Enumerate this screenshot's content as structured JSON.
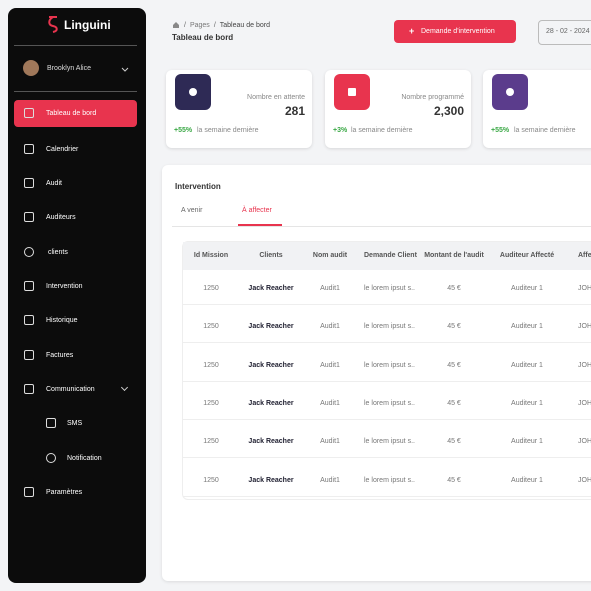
{
  "sidebar": {
    "brand": "Linguini",
    "user": "Brooklyn Alice",
    "menu": [
      "Tableau de bord",
      "Calendrier",
      "Audit",
      "Auditeurs",
      "clients",
      "Intervention",
      "Historique",
      "Factures",
      "Communication",
      "SMS",
      "Notification",
      "Paramètres"
    ]
  },
  "header": {
    "breadcrumb": [
      "Pages",
      "Tableau de bord"
    ],
    "separator": "/",
    "title": "Tableau de bord",
    "button": "Demande d'intervention",
    "date": "28 - 02 - 2024"
  },
  "cards": [
    {
      "label": "Nombre en attente",
      "value": "281",
      "change": "+55%",
      "change_text": "la semaine dernière"
    },
    {
      "label": "Nombre programmé",
      "value": "2,300",
      "change": "+3%",
      "change_text": "la semaine dernière"
    },
    {
      "change": "+55%",
      "change_text": "la semaine dernière"
    }
  ],
  "panel": {
    "title": "Intervention",
    "tabs": [
      "A venir",
      "À  affecter"
    ],
    "table": {
      "columns": [
        "Id  Mission",
        "Clients",
        "Nom audit",
        "Demande Client",
        "Montant de l'audit",
        "Auditeur Affecté",
        "Affe"
      ],
      "rows": [
        [
          1250,
          "Jack Reacher",
          "Audit1",
          "le lorem ipsut s..",
          "45  €",
          "Auditeur 1",
          "JOH"
        ],
        [
          1250,
          "Jack Reacher",
          "Audit1",
          "le lorem ipsut s..",
          "45  €",
          "Auditeur 1",
          "JOH"
        ],
        [
          1250,
          "Jack Reacher",
          "Audit1",
          "le lorem ipsut s..",
          "45  €",
          "Auditeur 1",
          "JOH"
        ],
        [
          1250,
          "Jack Reacher",
          "Audit1",
          "le lorem ipsut s..",
          "45  €",
          "Auditeur 1",
          "JOH"
        ],
        [
          1250,
          "Jack Reacher",
          "Audit1",
          "le lorem ipsut s..",
          "45  €",
          "Auditeur 1",
          "JOH"
        ],
        [
          1250,
          "Jack Reacher",
          "Audit1",
          "le lorem ipsut s..",
          "45  €",
          "Auditeur 1",
          "JOH"
        ]
      ]
    }
  }
}
